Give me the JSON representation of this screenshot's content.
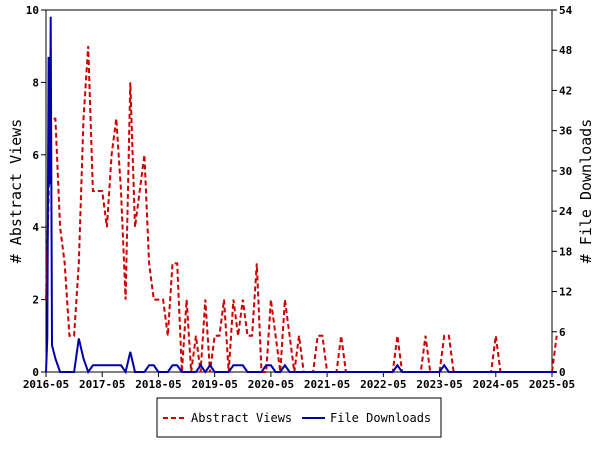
{
  "chart_data": {
    "type": "line",
    "y_left": {
      "label": "# Abstract Views",
      "range": [
        0,
        10
      ],
      "ticks": [
        "0",
        "2",
        "4",
        "6",
        "8",
        "10"
      ]
    },
    "y_right": {
      "label": "# File Downloads",
      "range": [
        0,
        54
      ],
      "ticks": [
        "0",
        "6",
        "12",
        "18",
        "24",
        "30",
        "36",
        "42",
        "48",
        "54"
      ]
    },
    "x_ticks": [
      "2016-05",
      "2017-05",
      "2018-05",
      "2019-05",
      "2020-05",
      "2021-05",
      "2022-05",
      "2023-05",
      "2024-05",
      "2025-05"
    ],
    "x_range": [
      "2016-05",
      "2025-05"
    ],
    "grid": false,
    "legend_position": "bottom",
    "series": [
      {
        "name": "Abstract Views",
        "axis": "left",
        "color": "#cc0000",
        "style": "dashed",
        "points": [
          [
            "2016-05",
            2
          ],
          [
            "2016-06",
            7
          ],
          [
            "2016-07",
            7
          ],
          [
            "2016-08",
            4
          ],
          [
            "2016-09",
            3
          ],
          [
            "2016-10",
            1
          ],
          [
            "2016-11",
            1
          ],
          [
            "2016-12",
            3
          ],
          [
            "2017-01",
            7
          ],
          [
            "2017-02",
            9
          ],
          [
            "2017-03",
            5
          ],
          [
            "2017-04",
            5
          ],
          [
            "2017-05",
            5
          ],
          [
            "2017-06",
            4
          ],
          [
            "2017-07",
            6
          ],
          [
            "2017-08",
            7
          ],
          [
            "2017-09",
            5
          ],
          [
            "2017-10",
            2
          ],
          [
            "2017-11",
            8
          ],
          [
            "2017-12",
            4
          ],
          [
            "2018-01",
            5
          ],
          [
            "2018-02",
            6
          ],
          [
            "2018-03",
            3
          ],
          [
            "2018-04",
            2
          ],
          [
            "2018-05",
            2
          ],
          [
            "2018-06",
            2
          ],
          [
            "2018-07",
            1
          ],
          [
            "2018-08",
            3
          ],
          [
            "2018-09",
            3
          ],
          [
            "2018-10",
            0
          ],
          [
            "2018-11",
            2
          ],
          [
            "2018-12",
            0
          ],
          [
            "2019-01",
            1
          ],
          [
            "2019-02",
            0
          ],
          [
            "2019-03",
            2
          ],
          [
            "2019-04",
            0
          ],
          [
            "2019-05",
            1
          ],
          [
            "2019-06",
            1
          ],
          [
            "2019-07",
            2
          ],
          [
            "2019-08",
            0
          ],
          [
            "2019-09",
            2
          ],
          [
            "2019-10",
            1
          ],
          [
            "2019-11",
            2
          ],
          [
            "2019-12",
            1
          ],
          [
            "2020-01",
            1
          ],
          [
            "2020-02",
            3
          ],
          [
            "2020-03",
            0
          ],
          [
            "2020-04",
            0
          ],
          [
            "2020-05",
            2
          ],
          [
            "2020-06",
            1
          ],
          [
            "2020-07",
            0
          ],
          [
            "2020-08",
            2
          ],
          [
            "2020-09",
            1
          ],
          [
            "2020-10",
            0
          ],
          [
            "2020-11",
            1
          ],
          [
            "2020-12",
            0
          ],
          [
            "2021-01",
            0
          ],
          [
            "2021-02",
            0
          ],
          [
            "2021-03",
            1
          ],
          [
            "2021-04",
            1
          ],
          [
            "2021-05",
            0
          ],
          [
            "2021-06",
            0
          ],
          [
            "2021-07",
            0
          ],
          [
            "2021-08",
            1
          ],
          [
            "2021-09",
            0
          ],
          [
            "2021-10",
            0
          ],
          [
            "2021-11",
            0
          ],
          [
            "2021-12",
            0
          ],
          [
            "2022-01",
            0
          ],
          [
            "2022-02",
            0
          ],
          [
            "2022-03",
            0
          ],
          [
            "2022-04",
            0
          ],
          [
            "2022-05",
            0
          ],
          [
            "2022-06",
            0
          ],
          [
            "2022-07",
            0
          ],
          [
            "2022-08",
            1
          ],
          [
            "2022-09",
            0
          ],
          [
            "2022-10",
            0
          ],
          [
            "2022-11",
            0
          ],
          [
            "2022-12",
            0
          ],
          [
            "2023-01",
            0
          ],
          [
            "2023-02",
            1
          ],
          [
            "2023-03",
            0
          ],
          [
            "2023-04",
            0
          ],
          [
            "2023-05",
            0
          ],
          [
            "2023-06",
            1
          ],
          [
            "2023-07",
            1
          ],
          [
            "2023-08",
            0
          ],
          [
            "2023-09",
            0
          ],
          [
            "2023-10",
            0
          ],
          [
            "2023-11",
            0
          ],
          [
            "2023-12",
            0
          ],
          [
            "2024-01",
            0
          ],
          [
            "2024-02",
            0
          ],
          [
            "2024-03",
            0
          ],
          [
            "2024-04",
            0
          ],
          [
            "2024-05",
            1
          ],
          [
            "2024-06",
            0
          ],
          [
            "2024-07",
            0
          ],
          [
            "2024-08",
            0
          ],
          [
            "2024-09",
            0
          ],
          [
            "2024-10",
            0
          ],
          [
            "2024-11",
            0
          ],
          [
            "2024-12",
            0
          ],
          [
            "2025-01",
            0
          ],
          [
            "2025-02",
            0
          ],
          [
            "2025-03",
            0
          ],
          [
            "2025-04",
            0
          ],
          [
            "2025-05",
            0
          ],
          [
            "2025-06",
            1
          ]
        ]
      },
      {
        "name": "File Downloads",
        "axis": "right",
        "color": "#0000aa",
        "style": "solid",
        "points": [
          [
            "2016-05",
            0
          ],
          [
            "2016-05",
            5
          ],
          [
            "2016-05",
            47
          ],
          [
            "2016-05",
            28
          ],
          [
            "2016-06",
            53
          ],
          [
            "2016-06",
            4
          ],
          [
            "2016-07",
            2
          ],
          [
            "2016-08",
            0
          ],
          [
            "2016-09",
            0
          ],
          [
            "2016-10",
            0
          ],
          [
            "2016-11",
            0
          ],
          [
            "2016-12",
            5
          ],
          [
            "2017-01",
            2
          ],
          [
            "2017-02",
            0
          ],
          [
            "2017-03",
            1
          ],
          [
            "2017-04",
            1
          ],
          [
            "2017-05",
            1
          ],
          [
            "2017-06",
            1
          ],
          [
            "2017-07",
            1
          ],
          [
            "2017-08",
            1
          ],
          [
            "2017-09",
            1
          ],
          [
            "2017-10",
            0
          ],
          [
            "2017-11",
            3
          ],
          [
            "2017-12",
            0
          ],
          [
            "2018-01",
            0
          ],
          [
            "2018-02",
            0
          ],
          [
            "2018-03",
            1
          ],
          [
            "2018-04",
            1
          ],
          [
            "2018-05",
            0
          ],
          [
            "2018-06",
            0
          ],
          [
            "2018-07",
            0
          ],
          [
            "2018-08",
            1
          ],
          [
            "2018-09",
            1
          ],
          [
            "2018-10",
            0
          ],
          [
            "2018-11",
            0
          ],
          [
            "2018-12",
            0
          ],
          [
            "2019-01",
            0
          ],
          [
            "2019-02",
            1
          ],
          [
            "2019-03",
            0
          ],
          [
            "2019-04",
            1
          ],
          [
            "2019-05",
            0
          ],
          [
            "2019-06",
            0
          ],
          [
            "2019-07",
            0
          ],
          [
            "2019-08",
            0
          ],
          [
            "2019-09",
            1
          ],
          [
            "2019-10",
            1
          ],
          [
            "2019-11",
            1
          ],
          [
            "2019-12",
            0
          ],
          [
            "2020-01",
            0
          ],
          [
            "2020-02",
            0
          ],
          [
            "2020-03",
            0
          ],
          [
            "2020-04",
            1
          ],
          [
            "2020-05",
            1
          ],
          [
            "2020-06",
            0
          ],
          [
            "2020-07",
            0
          ],
          [
            "2020-08",
            1
          ],
          [
            "2020-09",
            0
          ],
          [
            "2020-10",
            0
          ],
          [
            "2020-11",
            0
          ],
          [
            "2020-12",
            0
          ],
          [
            "2021-01",
            0
          ],
          [
            "2021-02",
            0
          ],
          [
            "2021-03",
            0
          ],
          [
            "2021-04",
            0
          ],
          [
            "2021-05",
            0
          ],
          [
            "2021-06",
            0
          ],
          [
            "2021-07",
            0
          ],
          [
            "2021-08",
            0
          ],
          [
            "2021-09",
            0
          ],
          [
            "2021-10",
            0
          ],
          [
            "2021-11",
            0
          ],
          [
            "2021-12",
            0
          ],
          [
            "2022-01",
            0
          ],
          [
            "2022-02",
            0
          ],
          [
            "2022-03",
            0
          ],
          [
            "2022-04",
            0
          ],
          [
            "2022-05",
            0
          ],
          [
            "2022-06",
            0
          ],
          [
            "2022-07",
            0
          ],
          [
            "2022-08",
            1
          ],
          [
            "2022-09",
            0
          ],
          [
            "2022-10",
            0
          ],
          [
            "2022-11",
            0
          ],
          [
            "2022-12",
            0
          ],
          [
            "2023-01",
            0
          ],
          [
            "2023-02",
            0
          ],
          [
            "2023-03",
            0
          ],
          [
            "2023-04",
            0
          ],
          [
            "2023-05",
            0
          ],
          [
            "2023-06",
            1
          ],
          [
            "2023-07",
            0
          ],
          [
            "2023-08",
            0
          ],
          [
            "2023-09",
            0
          ],
          [
            "2023-10",
            0
          ],
          [
            "2023-11",
            0
          ],
          [
            "2023-12",
            0
          ],
          [
            "2024-01",
            0
          ],
          [
            "2024-02",
            0
          ],
          [
            "2024-03",
            0
          ],
          [
            "2024-04",
            0
          ],
          [
            "2024-05",
            0
          ],
          [
            "2024-06",
            0
          ],
          [
            "2024-07",
            0
          ],
          [
            "2024-08",
            0
          ],
          [
            "2024-09",
            0
          ],
          [
            "2024-10",
            0
          ],
          [
            "2024-11",
            0
          ],
          [
            "2024-12",
            0
          ],
          [
            "2025-01",
            0
          ],
          [
            "2025-02",
            0
          ],
          [
            "2025-03",
            0
          ],
          [
            "2025-04",
            0
          ],
          [
            "2025-05",
            0
          ],
          [
            "2025-06",
            0
          ]
        ]
      }
    ],
    "legend": [
      {
        "name": "Abstract Views",
        "color": "#cc0000",
        "style": "dashed"
      },
      {
        "name": "File Downloads",
        "color": "#0000aa",
        "style": "solid"
      }
    ]
  }
}
